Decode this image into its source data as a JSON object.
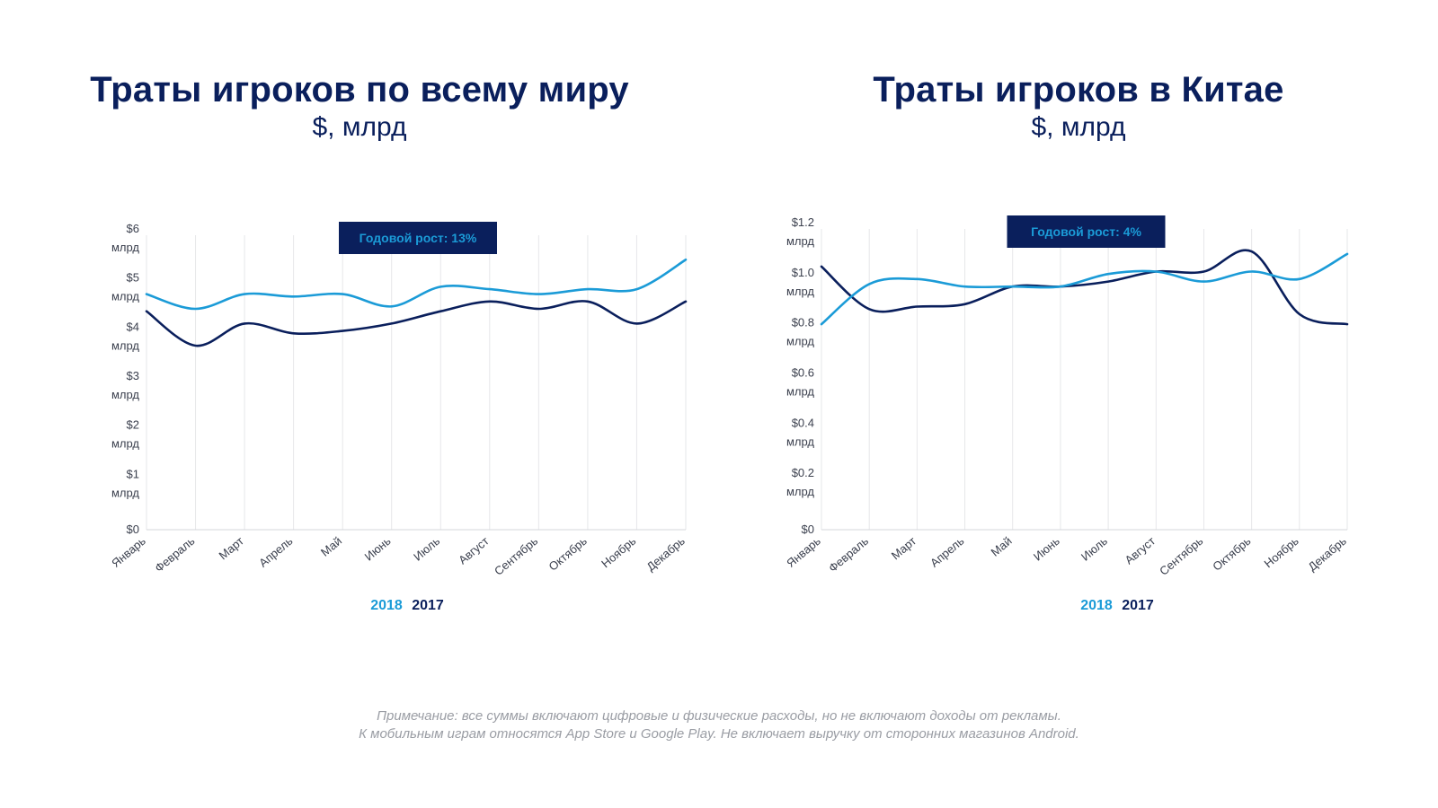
{
  "colors": {
    "series_2018": "#1b9bd7",
    "series_2017": "#0a1f5c",
    "title": "#0a1f5c",
    "grid": "#e6e7ea",
    "footnote": "#9a9da4"
  },
  "chart_data": [
    {
      "type": "line",
      "title": "Траты игроков по всему миру",
      "subtitle": "$, млрд",
      "growth_label": "Годовой рост: 13%",
      "categories": [
        "Январь",
        "Февраль",
        "Март",
        "Апрель",
        "Май",
        "Июнь",
        "Июль",
        "Август",
        "Сентябрь",
        "Октябрь",
        "Ноябрь",
        "Декабрь"
      ],
      "y_ticks": [
        {
          "value": 0,
          "line1": "$0",
          "line2": ""
        },
        {
          "value": 1,
          "line1": "$1",
          "line2": "млрд"
        },
        {
          "value": 2,
          "line1": "$2",
          "line2": "млрд"
        },
        {
          "value": 3,
          "line1": "$3",
          "line2": "млрд"
        },
        {
          "value": 4,
          "line1": "$4",
          "line2": "млрд"
        },
        {
          "value": 5,
          "line1": "$5",
          "line2": "млрд"
        },
        {
          "value": 6,
          "line1": "$6",
          "line2": "млрд"
        }
      ],
      "ylim": [
        0,
        6
      ],
      "series": [
        {
          "name": "2018",
          "values": [
            4.8,
            4.5,
            4.8,
            4.75,
            4.8,
            4.55,
            4.95,
            4.9,
            4.8,
            4.9,
            4.9,
            5.5
          ]
        },
        {
          "name": "2017",
          "values": [
            4.45,
            3.75,
            4.2,
            4.0,
            4.05,
            4.2,
            4.45,
            4.65,
            4.5,
            4.65,
            4.2,
            4.65
          ]
        }
      ],
      "legend": [
        "2018",
        "2017"
      ]
    },
    {
      "type": "line",
      "title": "Траты игроков в Китае",
      "subtitle": "$, млрд",
      "growth_label": "Годовой рост: 4%",
      "categories": [
        "Январь",
        "Февраль",
        "Март",
        "Апрель",
        "Май",
        "Июнь",
        "Июль",
        "Август",
        "Сентябрь",
        "Октябрь",
        "Ноябрь",
        "Декабрь"
      ],
      "y_ticks": [
        {
          "value": 0,
          "line1": "$0",
          "line2": ""
        },
        {
          "value": 0.2,
          "line1": "$0.2",
          "line2": "млрд"
        },
        {
          "value": 0.4,
          "line1": "$0.4",
          "line2": "млрд"
        },
        {
          "value": 0.6,
          "line1": "$0.6",
          "line2": "млрд"
        },
        {
          "value": 0.8,
          "line1": "$0.8",
          "line2": "млрд"
        },
        {
          "value": 1.0,
          "line1": "$1.0",
          "line2": "млрд"
        },
        {
          "value": 1.2,
          "line1": "$1.2",
          "line2": "млрд"
        }
      ],
      "ylim": [
        0,
        1.2
      ],
      "series": [
        {
          "name": "2018",
          "values": [
            0.82,
            0.98,
            1.0,
            0.97,
            0.97,
            0.97,
            1.02,
            1.03,
            0.99,
            1.03,
            1.0,
            1.1
          ]
        },
        {
          "name": "2017",
          "values": [
            1.05,
            0.88,
            0.89,
            0.9,
            0.97,
            0.97,
            0.99,
            1.03,
            1.03,
            1.11,
            0.86,
            0.82
          ]
        }
      ],
      "legend": [
        "2018",
        "2017"
      ]
    }
  ],
  "footnote": {
    "line1": "Примечание: все суммы включают цифровые и физические расходы, но не включают доходы от рекламы.",
    "line2": "К мобильным играм относятся App Store и Google Play. Не включает выручку от сторонних магазинов Android."
  }
}
